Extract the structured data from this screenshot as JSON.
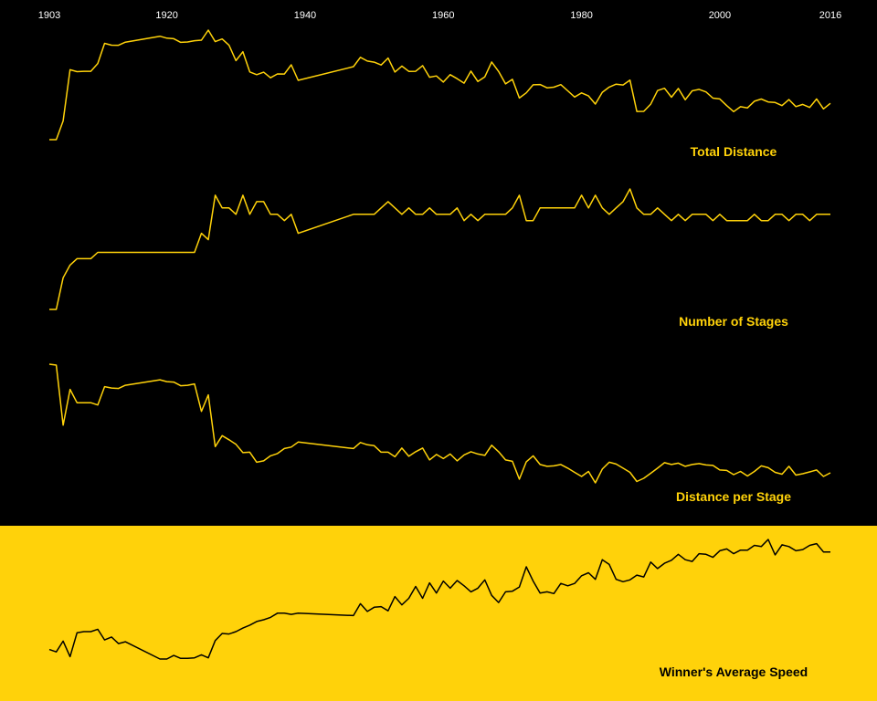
{
  "colors": {
    "background": "#000000",
    "accent": "#ffd20a",
    "axis_text": "#ffffff",
    "highlight_line": "#000000"
  },
  "chart_data": {
    "type": "line",
    "x_ticks": [
      1903,
      1920,
      1940,
      1960,
      1980,
      2000,
      2016
    ],
    "xlim": [
      1903,
      2016
    ],
    "years": [
      1903,
      1904,
      1905,
      1906,
      1907,
      1908,
      1909,
      1910,
      1911,
      1912,
      1913,
      1914,
      1919,
      1920,
      1921,
      1922,
      1923,
      1924,
      1925,
      1926,
      1927,
      1928,
      1929,
      1930,
      1931,
      1932,
      1933,
      1934,
      1935,
      1936,
      1937,
      1938,
      1939,
      1947,
      1948,
      1949,
      1950,
      1951,
      1952,
      1953,
      1954,
      1955,
      1956,
      1957,
      1958,
      1959,
      1960,
      1961,
      1962,
      1963,
      1964,
      1965,
      1966,
      1967,
      1968,
      1969,
      1970,
      1971,
      1972,
      1973,
      1974,
      1975,
      1976,
      1977,
      1978,
      1979,
      1980,
      1981,
      1982,
      1983,
      1984,
      1985,
      1986,
      1987,
      1988,
      1989,
      1990,
      1991,
      1992,
      1993,
      1994,
      1995,
      1996,
      1997,
      1998,
      1999,
      2000,
      2001,
      2002,
      2003,
      2004,
      2005,
      2006,
      2007,
      2008,
      2009,
      2010,
      2011,
      2012,
      2013,
      2014,
      2015,
      2016
    ],
    "series": [
      {
        "name": "Total Distance",
        "values": [
          2428,
          2428,
          2994,
          4545,
          4488,
          4497,
          4498,
          4734,
          5344,
          5289,
          5287,
          5380,
          5560,
          5503,
          5484,
          5375,
          5386,
          5425,
          5440,
          5745,
          5398,
          5476,
          5286,
          4822,
          5091,
          4479,
          4395,
          4470,
          4302,
          4418,
          4415,
          4694,
          4224,
          4640,
          4922,
          4808,
          4775,
          4690,
          4898,
          4476,
          4656,
          4495,
          4498,
          4669,
          4319,
          4358,
          4173,
          4397,
          4274,
          4138,
          4504,
          4188,
          4329,
          4779,
          4492,
          4117,
          4254,
          3689,
          3846,
          4090,
          4098,
          3999,
          4017,
          4096,
          3908,
          3720,
          3842,
          3753,
          3507,
          3862,
          4021,
          4109,
          4083,
          4231,
          3281,
          3285,
          3504,
          3914,
          3983,
          3714,
          3978,
          3635,
          3907,
          3950,
          3875,
          3687,
          3662,
          3458,
          3277,
          3427,
          3391,
          3593,
          3657,
          3570,
          3554,
          3459,
          3642,
          3430,
          3496,
          3404,
          3661,
          3360,
          3529
        ]
      },
      {
        "name": "Number of Stages",
        "values": [
          6,
          6,
          11,
          13,
          14,
          14,
          14,
          15,
          15,
          15,
          15,
          15,
          15,
          15,
          15,
          15,
          15,
          15,
          18,
          17,
          24,
          22,
          22,
          21,
          24,
          21,
          23,
          23,
          21,
          21,
          20,
          21,
          18,
          21,
          21,
          21,
          21,
          22,
          23,
          22,
          21,
          22,
          21,
          21,
          22,
          21,
          21,
          21,
          22,
          20,
          21,
          20,
          21,
          21,
          21,
          21,
          22,
          24,
          20,
          20,
          22,
          22,
          22,
          22,
          22,
          22,
          24,
          22,
          24,
          22,
          21,
          22,
          23,
          25,
          22,
          21,
          21,
          22,
          21,
          20,
          21,
          20,
          21,
          21,
          21,
          20,
          21,
          20,
          20,
          20,
          20,
          21,
          20,
          20,
          21,
          21,
          20,
          21,
          21,
          20,
          21,
          21,
          21
        ]
      },
      {
        "name": "Distance per Stage",
        "values": [
          405,
          403,
          272,
          350,
          321,
          321,
          321,
          316,
          356,
          353,
          352,
          359,
          371,
          367,
          366,
          358,
          359,
          362,
          302,
          338,
          225,
          249,
          240,
          230,
          212,
          213,
          191,
          194,
          205,
          210,
          221,
          224,
          235,
          221,
          234,
          229,
          227,
          213,
          213,
          203,
          222,
          204,
          214,
          222,
          196,
          208,
          199,
          209,
          194,
          207,
          214,
          209,
          206,
          228,
          214,
          196,
          193,
          154,
          192,
          205,
          186,
          182,
          183,
          186,
          178,
          169,
          160,
          171,
          146,
          176,
          191,
          187,
          178,
          169,
          149,
          156,
          167,
          178,
          190,
          186,
          189,
          182,
          186,
          188,
          185,
          184,
          174,
          173,
          164,
          171,
          161,
          171,
          183,
          179,
          169,
          165,
          182,
          163,
          166,
          170,
          174,
          160,
          168
        ]
      },
      {
        "name": "Winner's Average Speed",
        "values": [
          25.7,
          25.3,
          27.1,
          24.5,
          28.5,
          28.7,
          28.7,
          29.1,
          27.3,
          27.8,
          26.7,
          27.0,
          24.1,
          24.1,
          24.7,
          24.2,
          24.2,
          24.3,
          24.8,
          24.3,
          27.2,
          28.4,
          28.3,
          28.7,
          29.3,
          29.8,
          30.4,
          30.7,
          31.1,
          31.8,
          31.8,
          31.6,
          31.8,
          31.4,
          33.4,
          32.1,
          32.8,
          32.9,
          32.2,
          34.6,
          33.2,
          34.3,
          36.3,
          34.3,
          36.9,
          35.2,
          37.2,
          36.0,
          37.3,
          36.4,
          35.4,
          36.0,
          37.4,
          34.8,
          33.6,
          35.4,
          35.5,
          36.2,
          39.6,
          37.2,
          35.2,
          35.4,
          35.1,
          36.8,
          36.4,
          36.8,
          38.1,
          38.6,
          37.5,
          40.8,
          40.0,
          37.5,
          37.1,
          37.4,
          38.2,
          37.9,
          40.4,
          39.3,
          40.2,
          40.7,
          41.7,
          40.8,
          40.5,
          41.8,
          41.7,
          41.2,
          42.3,
          42.6,
          41.8,
          42.4,
          42.4,
          43.2,
          43.0,
          44.2,
          41.6,
          43.3,
          43.0,
          42.3,
          42.5,
          43.2,
          43.5,
          42.1,
          42.1
        ]
      }
    ],
    "highlighted_series": "Winner's Average Speed"
  }
}
